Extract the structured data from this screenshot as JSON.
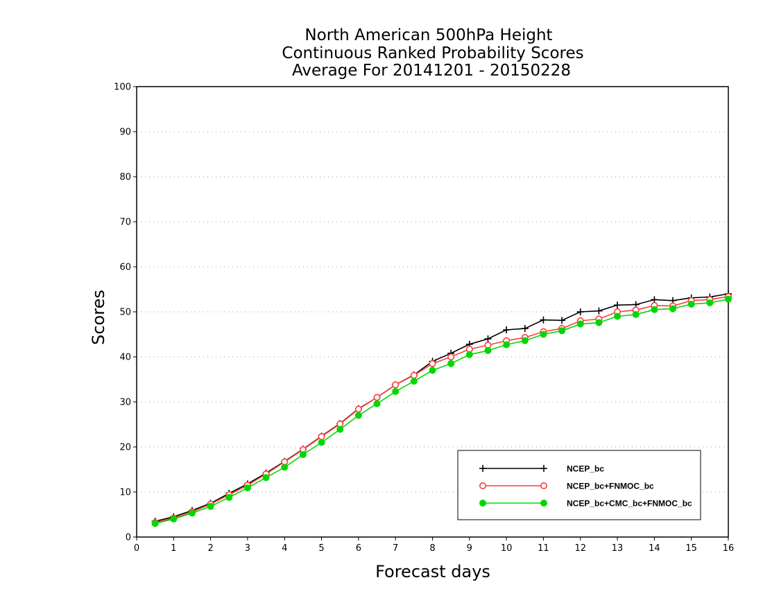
{
  "chart_data": {
    "type": "line",
    "title": [
      "North American 500hPa Height",
      "Continuous Ranked Probability Scores",
      "Average For 20141201 - 20150228"
    ],
    "xlabel": "Forecast days",
    "ylabel": "Scores",
    "xlim": [
      0,
      16
    ],
    "ylim": [
      0,
      100
    ],
    "xticks": [
      0,
      1,
      2,
      3,
      4,
      5,
      6,
      7,
      8,
      9,
      10,
      11,
      12,
      13,
      14,
      15,
      16
    ],
    "yticks": [
      0,
      10,
      20,
      30,
      40,
      50,
      60,
      70,
      80,
      90,
      100
    ],
    "grid": "horizontal dotted",
    "legend_position": "bottom-right",
    "x": [
      0.5,
      1.0,
      1.5,
      2.0,
      2.5,
      3.0,
      3.5,
      4.0,
      4.5,
      5.0,
      5.5,
      6.0,
      6.5,
      7.0,
      7.5,
      8.0,
      8.5,
      9.0,
      9.5,
      10.0,
      10.5,
      11.0,
      11.5,
      12.0,
      12.5,
      13.0,
      13.5,
      14.0,
      14.5,
      15.0,
      15.5,
      16.0
    ],
    "series": [
      {
        "name": "NCEP_bc",
        "color": "#000000",
        "marker": "plus",
        "values": [
          3.5,
          4.5,
          5.9,
          7.5,
          9.7,
          11.8,
          14.2,
          16.8,
          19.5,
          22.4,
          25.2,
          28.5,
          31.0,
          33.8,
          36.0,
          39.0,
          40.8,
          42.8,
          44.0,
          46.0,
          46.3,
          48.2,
          48.1,
          50.0,
          50.2,
          51.5,
          51.6,
          52.7,
          52.5,
          53.1,
          53.3,
          54.0
        ]
      },
      {
        "name": "NCEP_bc+FNMOC_bc",
        "color": "#ff3b3b",
        "marker": "open-circle",
        "values": [
          3.2,
          4.2,
          5.6,
          7.3,
          9.4,
          11.5,
          14.0,
          16.7,
          19.4,
          22.3,
          25.1,
          28.4,
          31.0,
          33.8,
          35.9,
          38.5,
          40.0,
          41.7,
          42.6,
          43.6,
          44.3,
          45.6,
          46.3,
          48.0,
          48.4,
          50.0,
          50.4,
          51.4,
          51.3,
          52.5,
          52.7,
          53.4
        ]
      },
      {
        "name": "NCEP_bc+CMC_bc+FNMOC_bc",
        "color": "#00d800",
        "marker": "filled-circle",
        "values": [
          3.0,
          4.0,
          5.3,
          6.8,
          8.8,
          10.9,
          13.2,
          15.5,
          18.3,
          21.0,
          23.9,
          27.0,
          29.6,
          32.3,
          34.6,
          37.0,
          38.5,
          40.5,
          41.4,
          42.7,
          43.6,
          45.0,
          45.8,
          47.3,
          47.6,
          49.0,
          49.4,
          50.5,
          50.7,
          51.7,
          52.0,
          52.8
        ]
      }
    ]
  }
}
